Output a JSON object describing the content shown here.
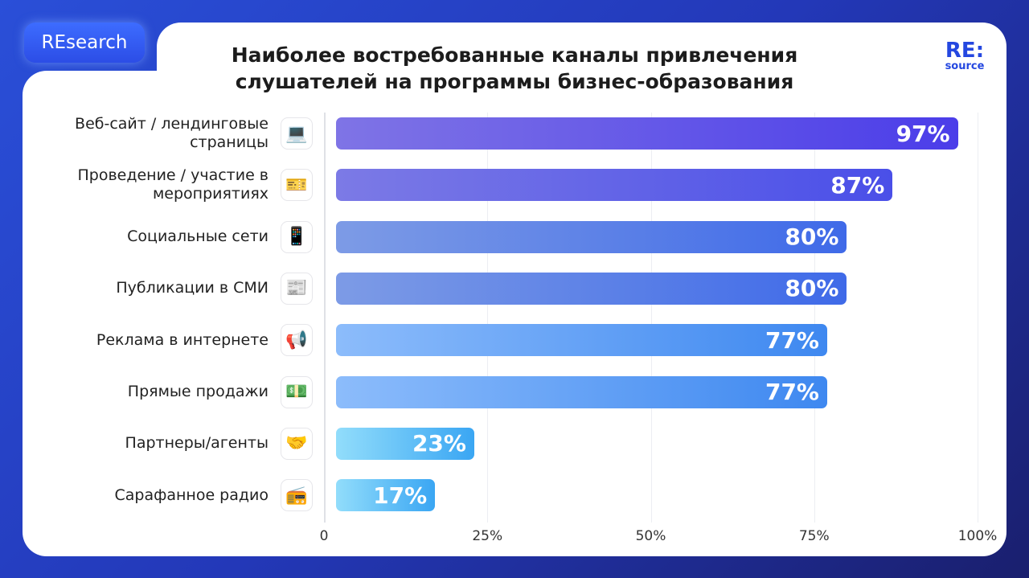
{
  "badge": "REsearch",
  "logo": {
    "top": "RE:",
    "bottom": "source"
  },
  "chart_data": {
    "type": "bar",
    "orientation": "horizontal",
    "title": "Наиболее востребованные каналы привлечения слушателей на программы бизнес-образования",
    "categories": [
      "Веб-сайт / лендинговые страницы",
      "Проведение / участие в мероприятиях",
      "Социальные сети",
      "Публикации в СМИ",
      "Реклама в интернете",
      "Прямые продажи",
      "Партнеры/агенты",
      "Сарафанное радио"
    ],
    "values": [
      97,
      87,
      80,
      80,
      77,
      77,
      23,
      17
    ],
    "data_labels": [
      "97%",
      "87%",
      "80%",
      "80%",
      "77%",
      "77%",
      "23%",
      "17%"
    ],
    "icons": [
      "laptop-icon",
      "ticket-icon",
      "smartphone-icon",
      "newspaper-icon",
      "megaphone-icon",
      "money-icon",
      "handshake-icon",
      "radio-icon"
    ],
    "icon_glyphs": [
      "💻",
      "🎫",
      "📱",
      "📰",
      "📢",
      "💵",
      "🤝",
      "📻"
    ],
    "colors": [
      [
        "#7f74e6",
        "#4b3de9"
      ],
      [
        "#7c7ae6",
        "#4a4fe8"
      ],
      [
        "#7d9be6",
        "#3f6ae8"
      ],
      [
        "#7d9be6",
        "#3f6ae8"
      ],
      [
        "#8cbcfb",
        "#3e88f0"
      ],
      [
        "#8cbcfb",
        "#3e88f0"
      ],
      [
        "#92ddfb",
        "#3aa6f3"
      ],
      [
        "#92ddfb",
        "#3aa6f3"
      ]
    ],
    "xticks": [
      0,
      25,
      50,
      75,
      100
    ],
    "xtick_labels": [
      "0",
      "25%",
      "50%",
      "75%",
      "100%"
    ],
    "xlim": [
      0,
      100
    ],
    "grid": true
  }
}
